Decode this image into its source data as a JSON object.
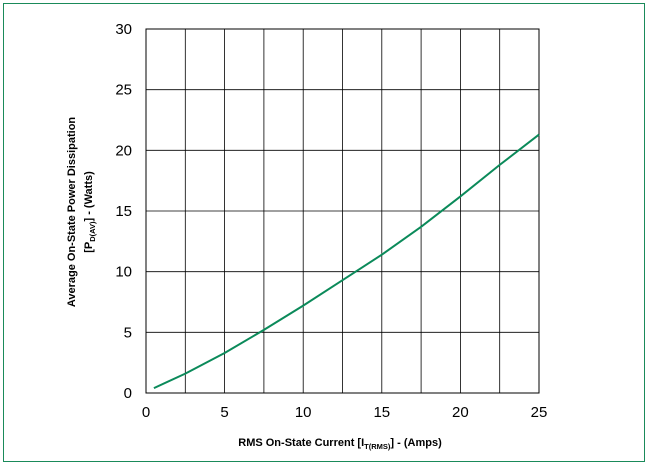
{
  "chart_data": {
    "type": "line",
    "title": "",
    "xlabel": {
      "main": "RMS On-State Current [I",
      "subscript": "T(RMS)",
      "suffix": "] - (Amps)"
    },
    "ylabel": {
      "line1": "Average On-State Power Dissipation",
      "line2_main": "[P",
      "line2_subscript": "D(AV)",
      "line2_suffix": "] - (Watts)"
    },
    "xlim": [
      0,
      25
    ],
    "ylim": [
      0,
      30
    ],
    "xticks": [
      0,
      5,
      10,
      15,
      20,
      25
    ],
    "yticks": [
      0,
      5,
      10,
      15,
      20,
      25,
      30
    ],
    "grid": true,
    "line_color": "#0b8a5a",
    "frame_color": "#1a8a5a",
    "series": [
      {
        "x": [
          0.5,
          2.5,
          5,
          7.5,
          10,
          12.5,
          15,
          17.5,
          20,
          22.5,
          25
        ],
        "y": [
          0.4,
          1.6,
          3.3,
          5.2,
          7.2,
          9.3,
          11.4,
          13.7,
          16.2,
          18.8,
          21.3
        ]
      }
    ]
  }
}
